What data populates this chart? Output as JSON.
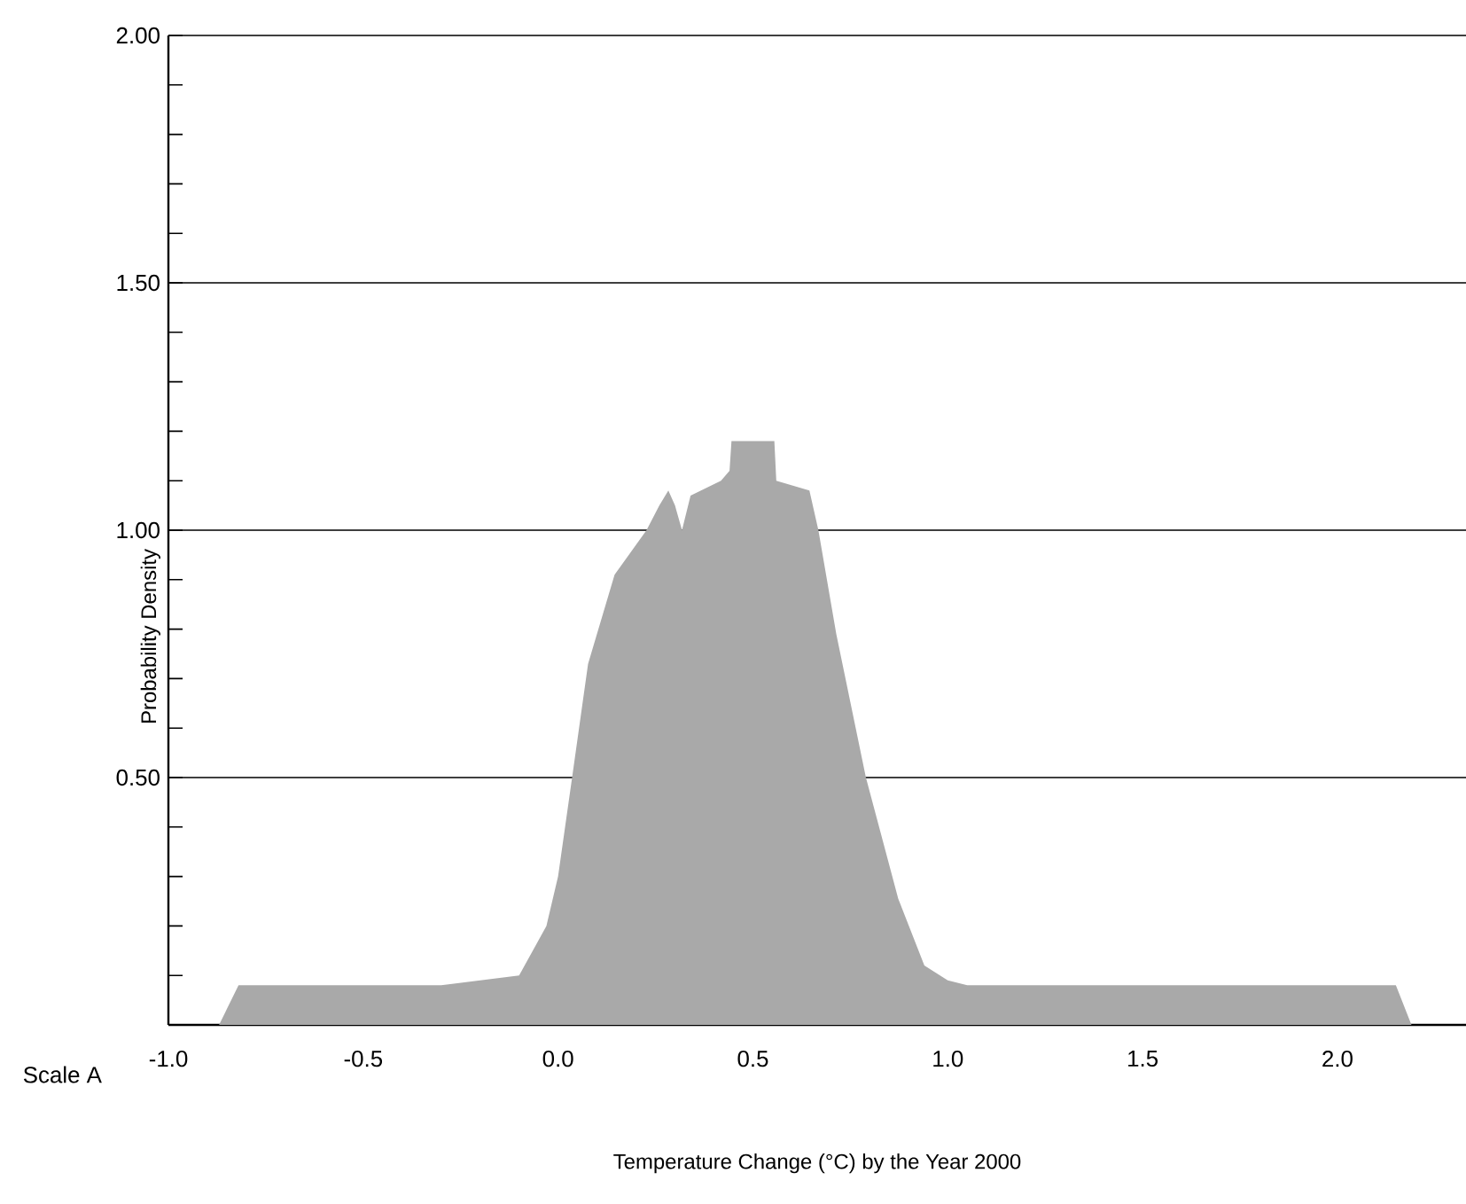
{
  "chart_data": {
    "type": "area",
    "xlabel": "Temperature Change (°C) by the Year 2000",
    "ylabel": "Probability Density",
    "annotations": [
      "Scale A"
    ],
    "x": [
      -0.87,
      -0.82,
      -0.3,
      -0.1,
      -0.03,
      0.0,
      0.036,
      0.077,
      0.145,
      0.227,
      0.26,
      0.283,
      0.3,
      0.318,
      0.34,
      0.418,
      0.44,
      0.445,
      0.555,
      0.56,
      0.645,
      0.668,
      0.714,
      0.79,
      0.873,
      0.94,
      1.0,
      1.05,
      2.15,
      2.19
    ],
    "values": [
      0,
      0.08,
      0.08,
      0.1,
      0.2,
      0.3,
      0.5,
      0.73,
      0.91,
      1.0,
      1.05,
      1.08,
      1.05,
      1.0,
      1.07,
      1.1,
      1.12,
      1.18,
      1.18,
      1.1,
      1.08,
      1.0,
      0.79,
      0.5,
      0.255,
      0.12,
      0.09,
      0.08,
      0.08,
      0
    ],
    "color": "#a9a9a9",
    "xlim": [
      -1.0,
      2.33
    ],
    "ylim": [
      0,
      2.0
    ],
    "xticks": [
      {
        "value": -1.0,
        "label": "-1.0"
      },
      {
        "value": -0.75,
        "label": null
      },
      {
        "value": -0.5,
        "label": "-0.5"
      },
      {
        "value": -0.25,
        "label": null
      },
      {
        "value": 0.0,
        "label": "0.0"
      },
      {
        "value": 0.25,
        "label": null
      },
      {
        "value": 0.5,
        "label": "0.5"
      },
      {
        "value": 0.75,
        "label": null
      },
      {
        "value": 1.0,
        "label": "1.0"
      },
      {
        "value": 1.25,
        "label": null
      },
      {
        "value": 1.5,
        "label": "1.5"
      },
      {
        "value": 1.75,
        "label": null
      },
      {
        "value": 2.0,
        "label": "2.0"
      }
    ],
    "yticks": [
      {
        "value": 0.1,
        "label": null
      },
      {
        "value": 0.2,
        "label": null
      },
      {
        "value": 0.3,
        "label": null
      },
      {
        "value": 0.4,
        "label": null
      },
      {
        "value": 0.5,
        "label": "0.50"
      },
      {
        "value": 0.6,
        "label": null
      },
      {
        "value": 0.7,
        "label": null
      },
      {
        "value": 0.8,
        "label": null
      },
      {
        "value": 0.9,
        "label": null
      },
      {
        "value": 1.0,
        "label": "1.00"
      },
      {
        "value": 1.1,
        "label": null
      },
      {
        "value": 1.2,
        "label": null
      },
      {
        "value": 1.3,
        "label": null
      },
      {
        "value": 1.4,
        "label": null
      },
      {
        "value": 1.5,
        "label": "1.50"
      },
      {
        "value": 1.6,
        "label": null
      },
      {
        "value": 1.7,
        "label": null
      },
      {
        "value": 1.8,
        "label": null
      },
      {
        "value": 1.9,
        "label": null
      },
      {
        "value": 2.0,
        "label": "2.00"
      }
    ],
    "grid": "y"
  }
}
